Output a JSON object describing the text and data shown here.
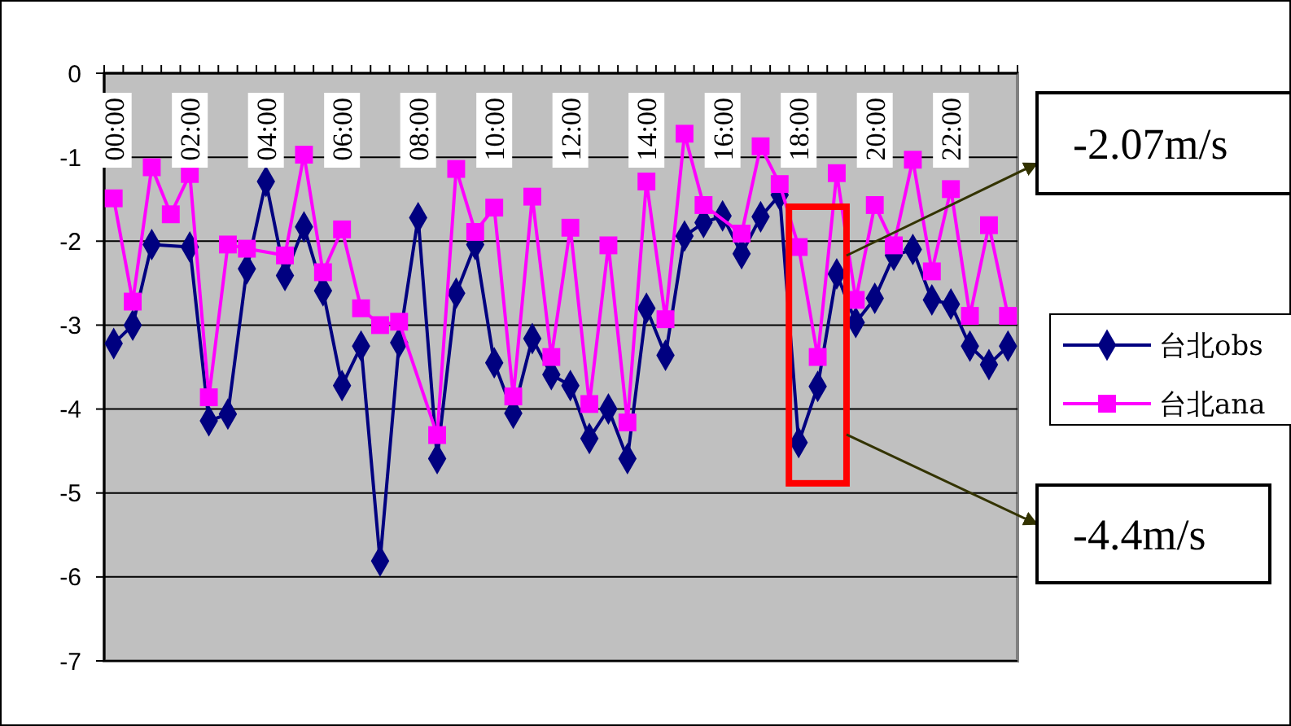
{
  "chart_data": {
    "type": "line",
    "categories": [
      "00:00",
      null,
      null,
      null,
      "02:00",
      null,
      null,
      null,
      "04:00",
      null,
      null,
      null,
      "06:00",
      null,
      null,
      null,
      "08:00",
      null,
      null,
      null,
      "10:00",
      null,
      null,
      null,
      "12:00",
      null,
      null,
      null,
      "14:00",
      null,
      null,
      null,
      "16:00",
      null,
      null,
      null,
      "18:00",
      null,
      null,
      null,
      "20:00",
      null,
      null,
      null,
      "22:00",
      null,
      null,
      null
    ],
    "series": [
      {
        "name": "台北obs",
        "color": "#000080",
        "marker": "diamond",
        "values": [
          -3.22,
          -3.0,
          -2.04,
          null,
          -2.07,
          -4.14,
          -4.06,
          -2.33,
          -1.29,
          -2.41,
          -1.83,
          -2.59,
          -3.72,
          -3.25,
          -5.81,
          -3.21,
          -1.72,
          -4.59,
          -2.62,
          -2.04,
          -3.45,
          -4.05,
          -3.16,
          -3.59,
          -3.72,
          -4.35,
          -4.0,
          -4.59,
          -2.8,
          -3.36,
          -1.94,
          -1.78,
          -1.7,
          -2.15,
          -1.71,
          -1.45,
          -4.4,
          -3.73,
          -2.39,
          -2.97,
          -2.68,
          -2.17,
          -2.1,
          -2.7,
          -2.75,
          -3.25,
          -3.47,
          -3.25
        ]
      },
      {
        "name": "台北ana",
        "color": "#ff00ff",
        "marker": "square",
        "values": [
          -1.49,
          -2.72,
          -1.12,
          -1.68,
          -1.2,
          -3.86,
          -2.04,
          -2.09,
          null,
          -2.17,
          -0.97,
          -2.37,
          -1.86,
          -2.8,
          -3.0,
          -2.96,
          null,
          -4.31,
          -1.14,
          -1.89,
          -1.6,
          -3.85,
          -1.47,
          -3.38,
          -1.84,
          -3.94,
          -2.05,
          -4.16,
          -1.29,
          -2.93,
          -0.72,
          -1.57,
          null,
          -1.91,
          -0.87,
          -1.32,
          -2.07,
          -3.38,
          -1.19,
          -2.7,
          -1.57,
          -2.05,
          -1.03,
          -2.36,
          -1.38,
          -2.89,
          -1.81,
          -2.89
        ]
      }
    ],
    "ylim": [
      -7,
      0
    ],
    "yticks": [
      0,
      -1,
      -2,
      -3,
      -4,
      -5,
      -6,
      -7
    ],
    "grid": "y",
    "legend": "right",
    "annotations": [
      "-2.07m/s",
      "-4.4m/s"
    ]
  }
}
